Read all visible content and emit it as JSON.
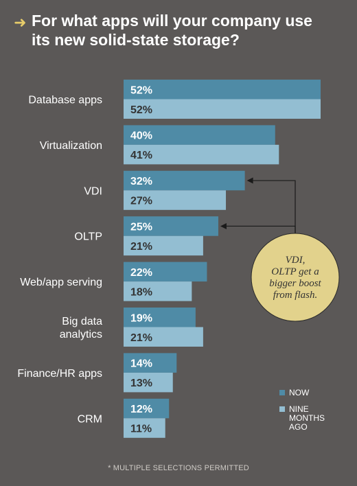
{
  "title": "For what apps will your company use its new solid-state storage?",
  "footnote": "* MULTIPLE SELECTIONS PERMITTED",
  "colors": {
    "background": "#5b5857",
    "now": "#4f8ba6",
    "nine_months_ago": "#93bed2",
    "title_arrow": "#e7cc6a",
    "callout": "#e2d28c"
  },
  "icons": {
    "title_arrow": "right-arrow-icon"
  },
  "callout": {
    "lines": [
      "VDI,",
      "OLTP get a",
      "bigger boost",
      "from flash."
    ]
  },
  "chart_data": {
    "type": "bar",
    "orientation": "horizontal",
    "categories": [
      [
        "Database apps"
      ],
      [
        "Virtualization"
      ],
      [
        "VDI"
      ],
      [
        "OLTP"
      ],
      [
        "Web/app serving"
      ],
      [
        "Big data",
        "analytics"
      ],
      [
        "Finance/HR apps"
      ],
      [
        "CRM"
      ]
    ],
    "series": [
      {
        "name": "NOW",
        "values": [
          52,
          40,
          32,
          25,
          22,
          19,
          14,
          12
        ]
      },
      {
        "name": "NINE MONTHS AGO",
        "values": [
          52,
          41,
          27,
          21,
          18,
          21,
          13,
          11
        ]
      }
    ],
    "legend": {
      "placement": "bottom-right",
      "lines": [
        [
          "NOW"
        ],
        [
          "NINE",
          "MONTHS",
          "AGO"
        ]
      ]
    },
    "value_suffix": "%",
    "xlim": [
      0,
      52
    ],
    "grid": false
  }
}
